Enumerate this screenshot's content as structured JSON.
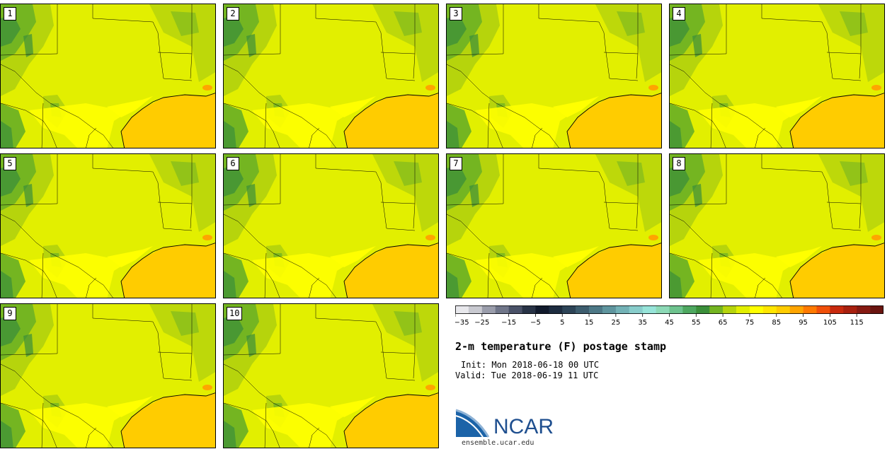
{
  "panels": [
    {
      "label": "1"
    },
    {
      "label": "2"
    },
    {
      "label": "3"
    },
    {
      "label": "4"
    },
    {
      "label": "5"
    },
    {
      "label": "6"
    },
    {
      "label": "7"
    },
    {
      "label": "8"
    },
    {
      "label": "9"
    },
    {
      "label": "10"
    }
  ],
  "colorbar": {
    "colors": [
      "#e8e8ec",
      "#c8c9d0",
      "#9a9dab",
      "#707689",
      "#4a5268",
      "#283346",
      "#111a2c",
      "#1d2c40",
      "#2d4457",
      "#3d5d6e",
      "#4d7886",
      "#5f959e",
      "#73b2b6",
      "#88cdcb",
      "#97e4d9",
      "#8cd9b6",
      "#6ec38e",
      "#4ea860",
      "#3b8f3a",
      "#74b521",
      "#b6d40c",
      "#e2ef00",
      "#ffff00",
      "#ffe600",
      "#ffcc00",
      "#ffa500",
      "#ff7a00",
      "#f0500a",
      "#c82a0e",
      "#a8200f",
      "#861a12",
      "#6a1510"
    ],
    "ticks": [
      "-35",
      "-25",
      "-15",
      "-5",
      "5",
      "15",
      "25",
      "35",
      "45",
      "55",
      "65",
      "75",
      "85",
      "95",
      "105",
      "115"
    ]
  },
  "title": "2-m temperature (F) postage stamp",
  "init": "Init: Mon 2018-06-18 00 UTC",
  "valid": "Valid: Tue 2018-06-19 11 UTC",
  "logo": {
    "text": "NCAR",
    "url": "ensemble.ucar.edu"
  }
}
